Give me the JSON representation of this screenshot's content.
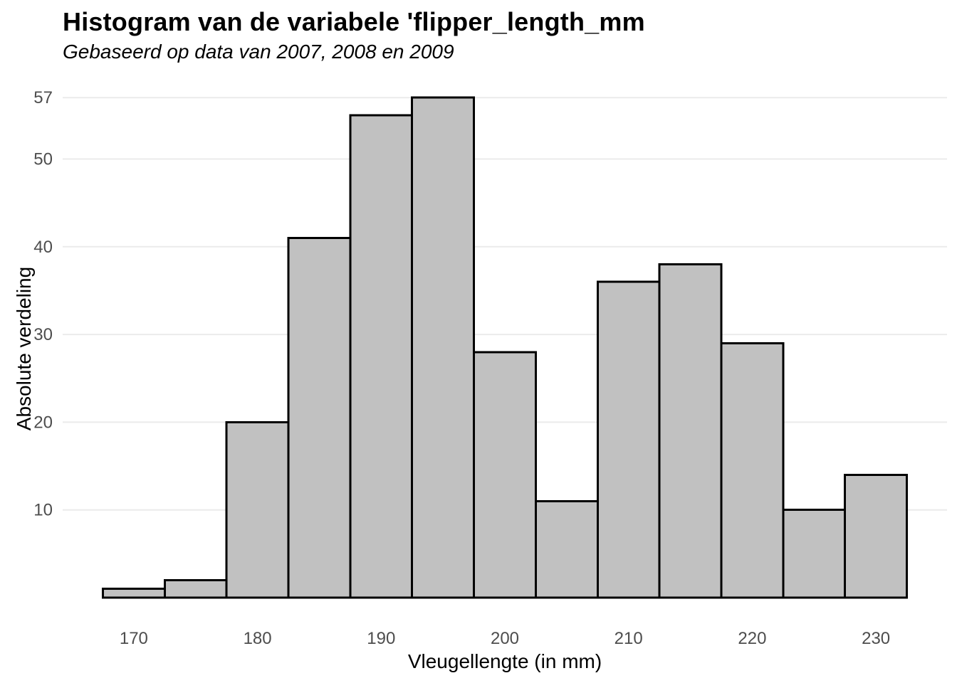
{
  "chart_data": {
    "type": "bar",
    "subtype": "histogram",
    "title": "Histogram van de variabele 'flipper_length_mm",
    "subtitle": "Gebaseerd op data van 2007, 2008 en 2009",
    "xlabel": "Vleugellengte (in mm)",
    "ylabel": "Absolute verdeling",
    "bin_width": 5,
    "bin_centers": [
      170,
      175,
      180,
      185,
      190,
      195,
      200,
      205,
      210,
      215,
      220,
      225,
      230
    ],
    "values": [
      1,
      2,
      20,
      41,
      55,
      57,
      28,
      11,
      36,
      38,
      29,
      10,
      14
    ],
    "x_ticks": [
      170,
      180,
      190,
      200,
      210,
      220,
      230
    ],
    "y_ticks": [
      10,
      20,
      30,
      40,
      50,
      57
    ],
    "xlim": [
      164.25,
      235.75
    ],
    "ylim": [
      0,
      59.85
    ],
    "grid": "horizontal-major-only",
    "legend": "none",
    "colors": {
      "background": "#ffffff",
      "bar_fill": "#c1c1c1",
      "bar_stroke": "#000000",
      "gridline": "#ebebeb",
      "tick_label": "#4d4d4d",
      "text": "#000000"
    }
  }
}
